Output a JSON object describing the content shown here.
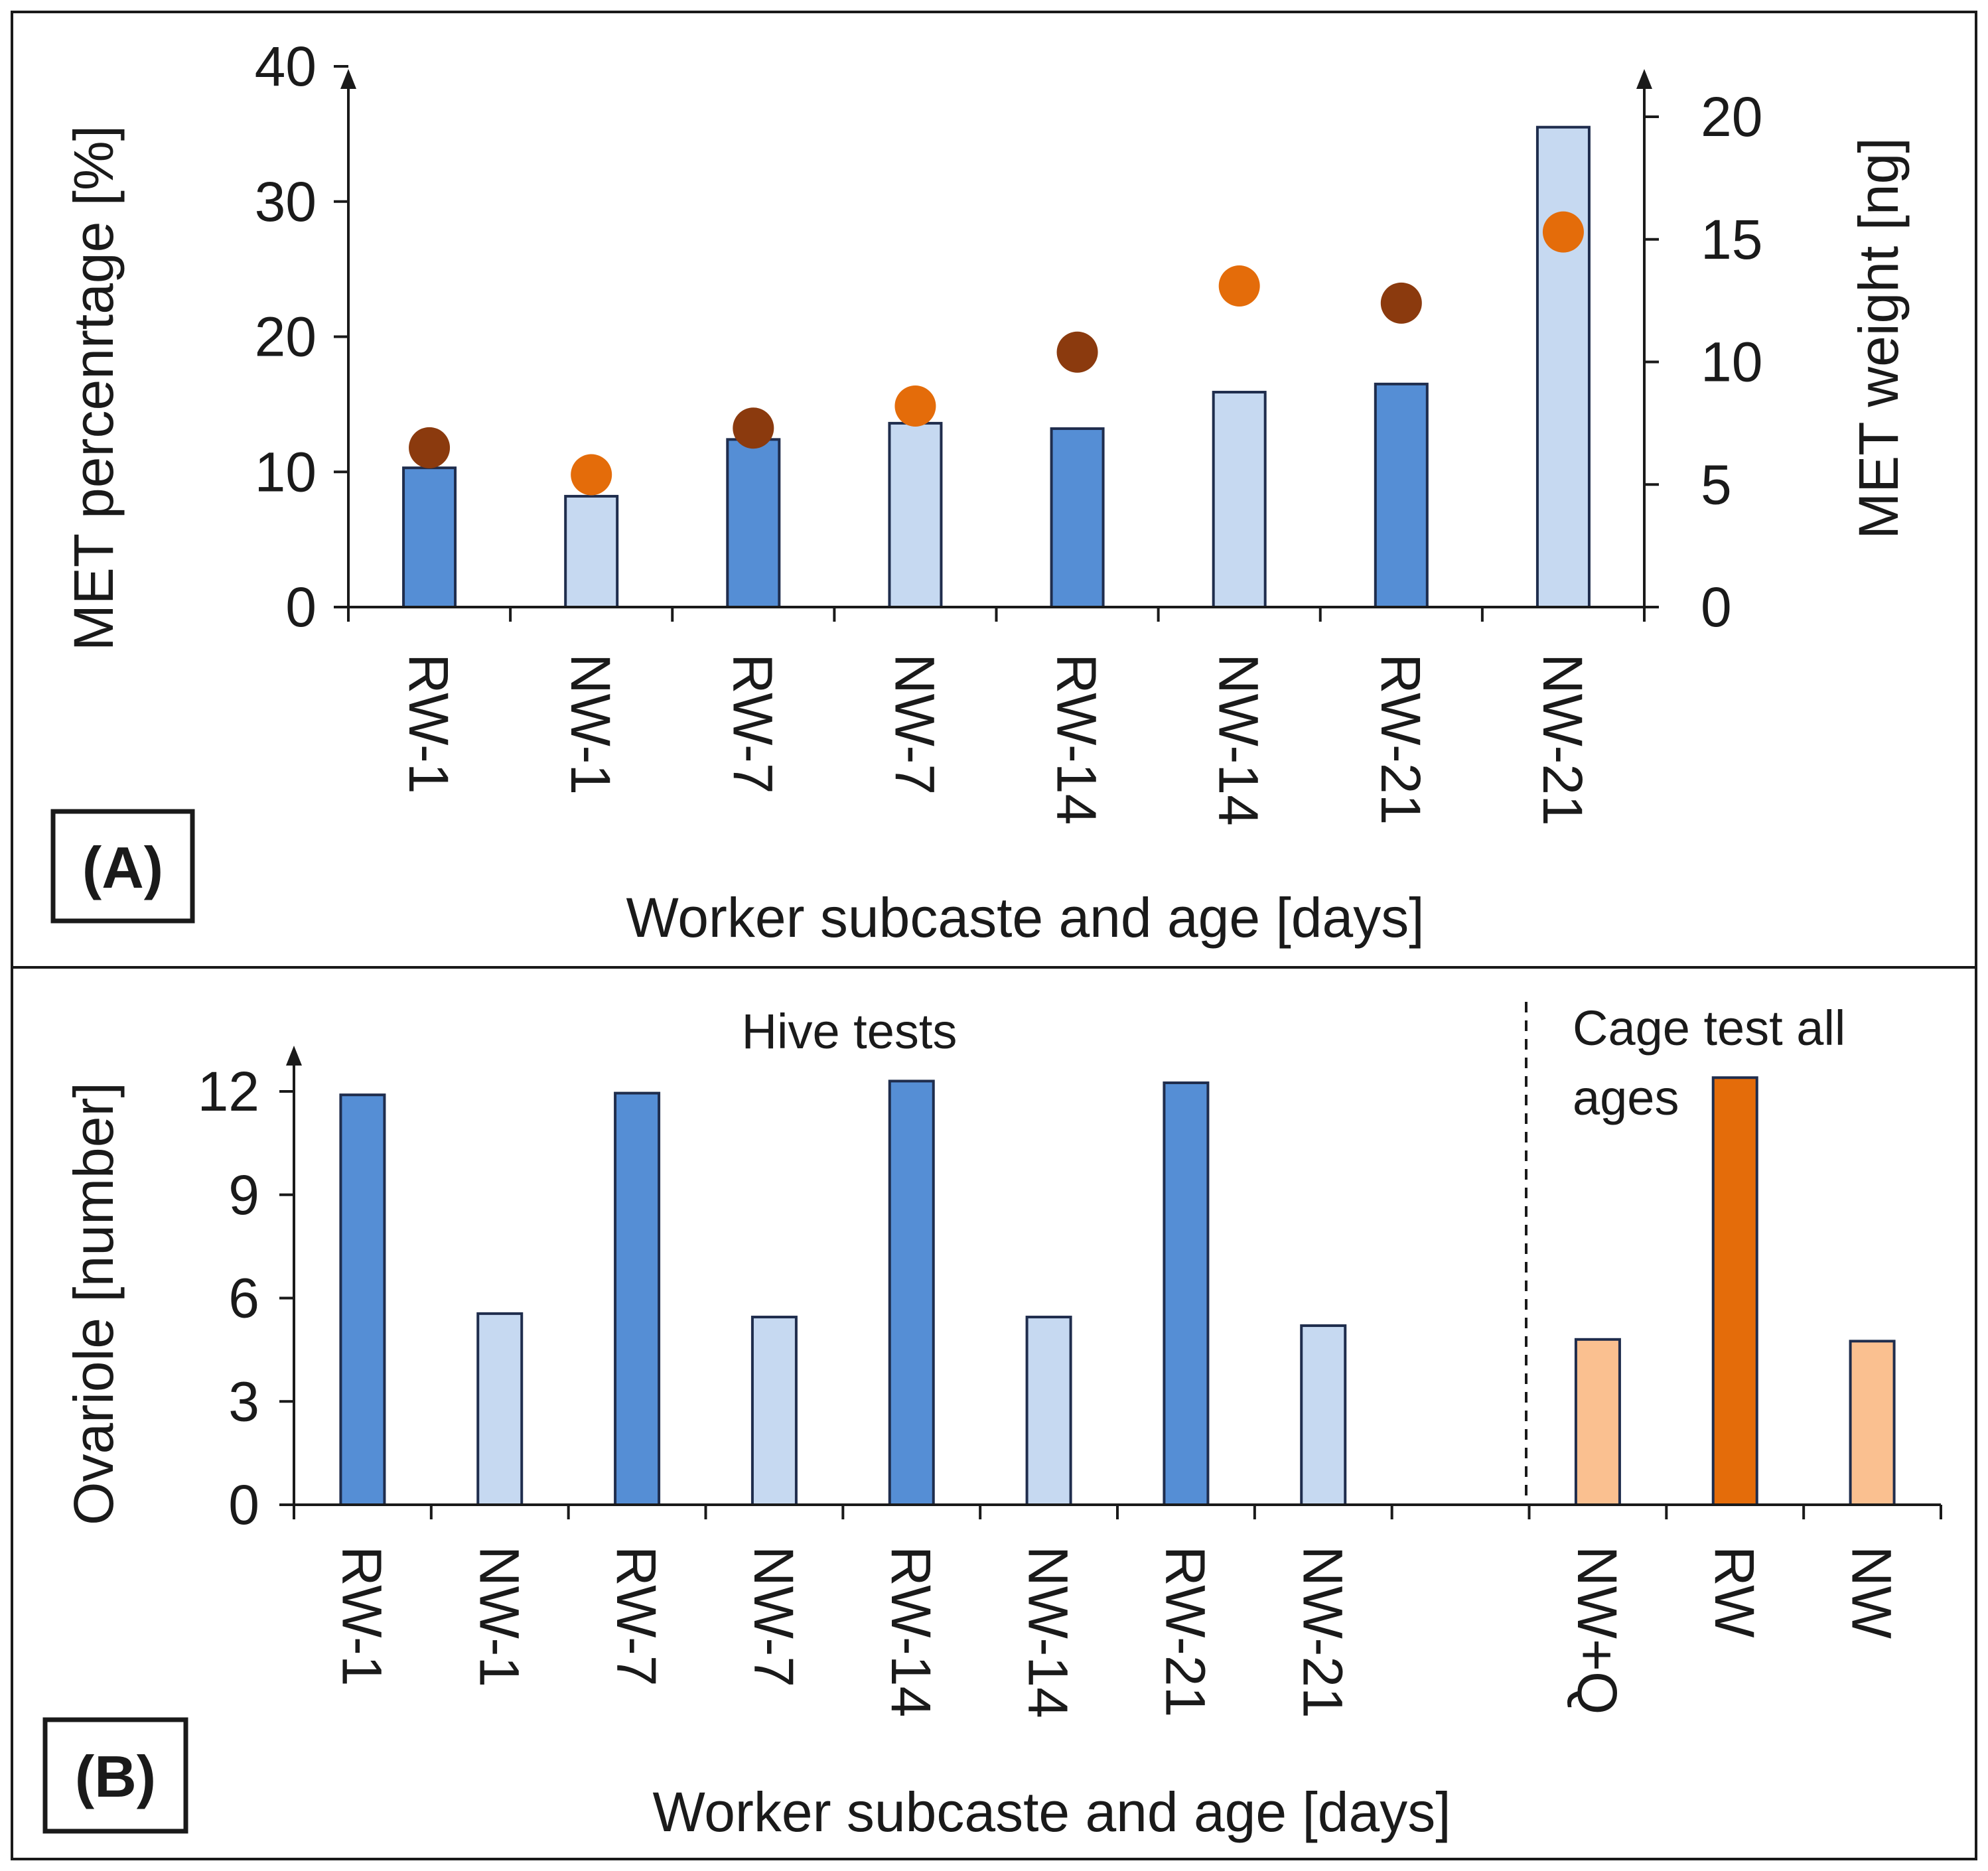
{
  "chart_data": [
    {
      "type": "bar",
      "panel_label": "(A)",
      "categories": [
        "RW-1",
        "NW-1",
        "RW-7",
        "NW-7",
        "RW-14",
        "NW-14",
        "RW-21",
        "NW-21"
      ],
      "values": [
        10.3,
        8.2,
        12.4,
        13.6,
        13.2,
        15.9,
        16.5,
        35.5
      ],
      "point_values": [
        6.5,
        5.4,
        7.3,
        8.2,
        10.4,
        13.1,
        12.4,
        15.3
      ],
      "xlabel": "Worker subcaste and age [days]",
      "ylabel": "MET percenrtage  [%]",
      "y2label": "MET weight  [ng]",
      "ylim": [
        0,
        40
      ],
      "y2lim": [
        0,
        20
      ],
      "yticks": [
        0,
        10,
        20,
        30,
        40
      ],
      "y2ticks": [
        0,
        5,
        10,
        15,
        20
      ],
      "legend": "none"
    },
    {
      "type": "bar",
      "panel_label": "(B)",
      "categories": [
        "RW-1",
        "NW-1",
        "RW-7",
        "NW-7",
        "RW-14",
        "NW-14",
        "RW-21",
        "NW-21",
        "",
        "NW+Q",
        "RW",
        "NW"
      ],
      "values": [
        11.9,
        5.55,
        11.95,
        5.45,
        12.3,
        5.45,
        12.25,
        5.2,
        null,
        4.8,
        12.4,
        4.75
      ],
      "group_labels": [
        "Hive tests",
        "Cage test all ages"
      ],
      "xlabel": "Worker subcaste and age [days]",
      "ylabel": "Ovariole [number]",
      "ylim": [
        0,
        12
      ],
      "yticks": [
        0,
        3,
        6,
        9,
        12
      ],
      "legend": "none"
    }
  ],
  "colors": {
    "rw_bar": "#558ed5",
    "nw_bar": "#c6d9f1",
    "rw_point": "#8b3a0e",
    "nw_point": "#e46c0a",
    "cage_rw_bar": "#e46c0a",
    "cage_nw_bar": "#fac090",
    "bar_edge": "#1f2d4d",
    "axis": "#1a1a1a"
  }
}
